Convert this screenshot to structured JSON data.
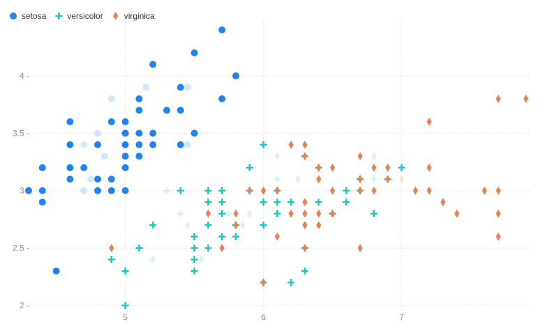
{
  "chart_data": {
    "type": "scatter",
    "title": "",
    "xlabel": "",
    "ylabel": "",
    "xlim": [
      4.3,
      7.9
    ],
    "ylim": [
      2.0,
      4.4
    ],
    "x_ticks": [
      5,
      6,
      7
    ],
    "y_ticks": [
      2,
      2.5,
      3,
      3.5,
      4
    ],
    "x_tick_labels": [
      "5",
      "6",
      "7"
    ],
    "y_tick_labels": [
      "2 -",
      "2.5 -",
      "3 -",
      "3.5 -",
      "4 -"
    ],
    "grid": true,
    "legend_position": "top-left",
    "series": [
      {
        "name": "setosa",
        "color": "#1f84f0",
        "marker": "circle",
        "points": [
          [
            4.3,
            3.0
          ],
          [
            4.4,
            3.2
          ],
          [
            4.4,
            3.0
          ],
          [
            4.4,
            2.9
          ],
          [
            4.5,
            2.3
          ],
          [
            4.6,
            3.6
          ],
          [
            4.6,
            3.4
          ],
          [
            4.6,
            3.2
          ],
          [
            4.6,
            3.1
          ],
          [
            4.7,
            3.2
          ],
          [
            4.8,
            3.4
          ],
          [
            4.8,
            3.1
          ],
          [
            4.8,
            3.0
          ],
          [
            4.9,
            3.6
          ],
          [
            4.9,
            3.1
          ],
          [
            4.9,
            3.0
          ],
          [
            5.0,
            3.6
          ],
          [
            5.0,
            3.5
          ],
          [
            5.0,
            3.4
          ],
          [
            5.0,
            3.3
          ],
          [
            5.0,
            3.2
          ],
          [
            5.0,
            3.0
          ],
          [
            5.1,
            3.8
          ],
          [
            5.1,
            3.7
          ],
          [
            5.1,
            3.5
          ],
          [
            5.1,
            3.4
          ],
          [
            5.1,
            3.3
          ],
          [
            5.2,
            4.1
          ],
          [
            5.2,
            3.5
          ],
          [
            5.2,
            3.4
          ],
          [
            5.3,
            3.7
          ],
          [
            5.4,
            3.9
          ],
          [
            5.4,
            3.7
          ],
          [
            5.4,
            3.4
          ],
          [
            5.5,
            4.2
          ],
          [
            5.5,
            3.5
          ],
          [
            5.7,
            4.4
          ],
          [
            5.7,
            3.8
          ],
          [
            5.8,
            4.0
          ],
          [
            5.0,
            3.5
          ]
        ]
      },
      {
        "name": "versicolor",
        "color": "#1ec8c1",
        "marker": "plus",
        "points": [
          [
            4.9,
            2.4
          ],
          [
            5.0,
            2.3
          ],
          [
            5.0,
            2.0
          ],
          [
            5.1,
            2.5
          ],
          [
            5.2,
            2.7
          ],
          [
            5.4,
            3.0
          ],
          [
            5.5,
            2.6
          ],
          [
            5.5,
            2.5
          ],
          [
            5.5,
            2.4
          ],
          [
            5.5,
            2.3
          ],
          [
            5.6,
            3.0
          ],
          [
            5.6,
            2.9
          ],
          [
            5.6,
            2.7
          ],
          [
            5.6,
            2.5
          ],
          [
            5.7,
            3.0
          ],
          [
            5.7,
            2.9
          ],
          [
            5.7,
            2.8
          ],
          [
            5.7,
            2.6
          ],
          [
            5.8,
            2.7
          ],
          [
            5.8,
            2.6
          ],
          [
            5.9,
            3.2
          ],
          [
            5.9,
            3.0
          ],
          [
            6.0,
            3.4
          ],
          [
            6.0,
            2.9
          ],
          [
            6.0,
            2.7
          ],
          [
            6.0,
            2.2
          ],
          [
            6.1,
            3.0
          ],
          [
            6.1,
            2.9
          ],
          [
            6.1,
            2.8
          ],
          [
            6.2,
            2.9
          ],
          [
            6.2,
            2.2
          ],
          [
            6.3,
            3.3
          ],
          [
            6.3,
            2.5
          ],
          [
            6.3,
            2.3
          ],
          [
            6.4,
            3.2
          ],
          [
            6.4,
            2.9
          ],
          [
            6.5,
            2.8
          ],
          [
            6.6,
            3.0
          ],
          [
            6.6,
            2.9
          ],
          [
            6.7,
            3.1
          ],
          [
            6.7,
            3.0
          ],
          [
            6.8,
            2.8
          ],
          [
            6.9,
            3.1
          ],
          [
            7.0,
            3.2
          ]
        ]
      },
      {
        "name": "virginica",
        "color": "#e8824f",
        "marker": "diamond",
        "points": [
          [
            4.9,
            2.5
          ],
          [
            5.6,
            2.8
          ],
          [
            5.7,
            2.5
          ],
          [
            5.8,
            2.8
          ],
          [
            5.8,
            2.7
          ],
          [
            5.9,
            3.0
          ],
          [
            6.0,
            3.0
          ],
          [
            6.0,
            2.2
          ],
          [
            6.1,
            3.0
          ],
          [
            6.1,
            2.6
          ],
          [
            6.2,
            3.4
          ],
          [
            6.2,
            2.8
          ],
          [
            6.3,
            3.4
          ],
          [
            6.3,
            3.3
          ],
          [
            6.3,
            2.9
          ],
          [
            6.3,
            2.8
          ],
          [
            6.3,
            2.7
          ],
          [
            6.3,
            2.5
          ],
          [
            6.4,
            3.2
          ],
          [
            6.4,
            3.1
          ],
          [
            6.4,
            2.8
          ],
          [
            6.4,
            2.7
          ],
          [
            6.5,
            3.2
          ],
          [
            6.5,
            3.0
          ],
          [
            6.5,
            2.8
          ],
          [
            6.7,
            3.3
          ],
          [
            6.7,
            3.1
          ],
          [
            6.7,
            3.0
          ],
          [
            6.7,
            2.5
          ],
          [
            6.8,
            3.2
          ],
          [
            6.8,
            3.0
          ],
          [
            6.9,
            3.2
          ],
          [
            6.9,
            3.1
          ],
          [
            7.1,
            3.0
          ],
          [
            7.2,
            3.6
          ],
          [
            7.2,
            3.2
          ],
          [
            7.2,
            3.0
          ],
          [
            7.3,
            2.9
          ],
          [
            7.4,
            2.8
          ],
          [
            7.6,
            3.0
          ],
          [
            7.7,
            3.8
          ],
          [
            7.7,
            3.0
          ],
          [
            7.7,
            2.8
          ],
          [
            7.7,
            2.6
          ],
          [
            7.9,
            3.8
          ]
        ]
      }
    ],
    "faded_points": [
      {
        "series": "setosa",
        "points": [
          [
            4.7,
            3.0
          ],
          [
            4.7,
            3.4
          ],
          [
            4.8,
            3.5
          ],
          [
            4.9,
            3.8
          ],
          [
            5.0,
            3.4
          ],
          [
            5.0,
            3.3
          ],
          [
            5.1,
            3.8
          ],
          [
            5.15,
            3.9
          ],
          [
            5.45,
            3.9
          ],
          [
            5.45,
            3.4
          ],
          [
            4.75,
            3.1
          ],
          [
            4.85,
            3.3
          ]
        ]
      },
      {
        "series": "versicolor",
        "points": [
          [
            5.3,
            3.0
          ],
          [
            5.4,
            2.8
          ],
          [
            5.2,
            2.4
          ],
          [
            5.6,
            3.0
          ],
          [
            6.1,
            3.1
          ],
          [
            6.2,
            2.8
          ],
          [
            6.8,
            3.1
          ],
          [
            5.75,
            2.8
          ],
          [
            5.55,
            2.4
          ]
        ]
      },
      {
        "series": "virginica",
        "points": [
          [
            5.45,
            2.7
          ],
          [
            5.9,
            2.8
          ],
          [
            6.0,
            3.0
          ],
          [
            6.1,
            3.3
          ],
          [
            6.25,
            3.1
          ],
          [
            6.8,
            3.3
          ],
          [
            7.0,
            3.1
          ],
          [
            5.85,
            2.7
          ]
        ]
      }
    ]
  }
}
